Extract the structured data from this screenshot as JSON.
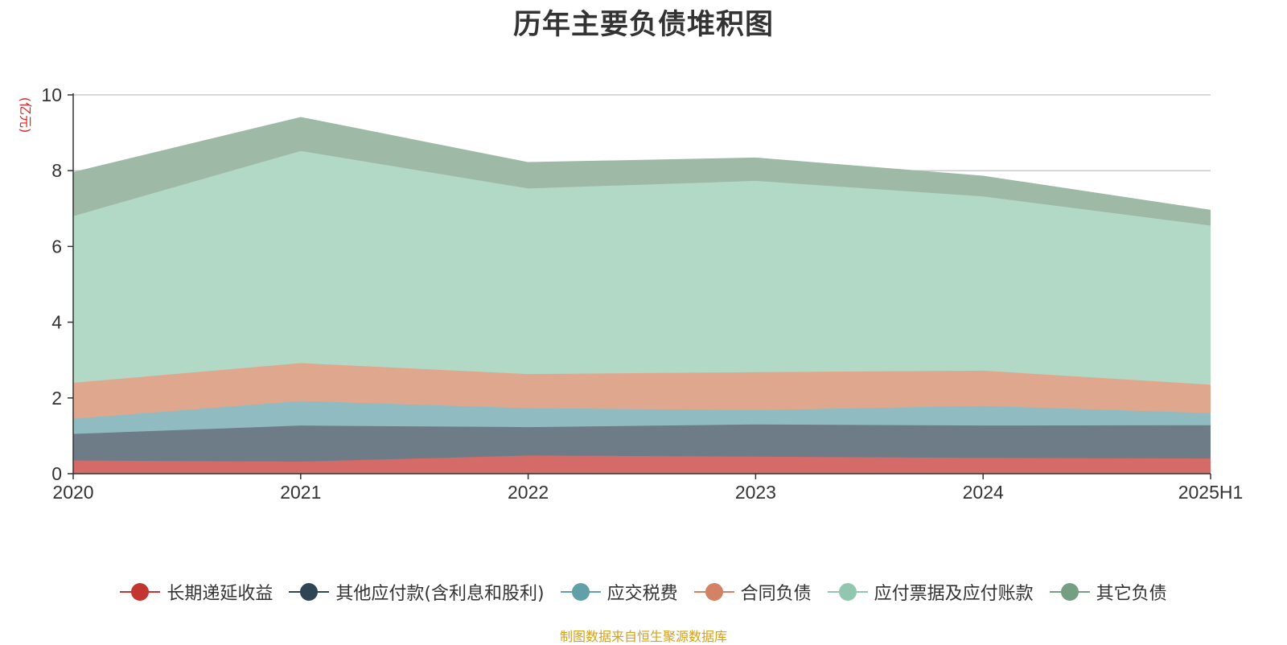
{
  "chart_data": {
    "type": "area",
    "title": "历年主要负债堆积图",
    "unit_label": "(亿元)",
    "x": [
      "2020",
      "2021",
      "2022",
      "2023",
      "2024",
      "2025H1"
    ],
    "ylim": [
      0,
      10
    ],
    "yticks": [
      0,
      2,
      4,
      6,
      8,
      10
    ],
    "stacked": true,
    "grid": true,
    "legend_position": "bottom",
    "series": [
      {
        "name": "长期递延收益",
        "values": [
          0.35,
          0.32,
          0.48,
          0.45,
          0.42,
          0.4
        ],
        "color": "#c23531",
        "fill": "#d46b69"
      },
      {
        "name": "其他应付款(含利息和股利)",
        "values": [
          0.7,
          0.95,
          0.75,
          0.85,
          0.85,
          0.88
        ],
        "color": "#2f4554",
        "fill": "#6e7c87"
      },
      {
        "name": "应交税费",
        "values": [
          0.4,
          0.65,
          0.5,
          0.38,
          0.52,
          0.32
        ],
        "color": "#61a0a8",
        "fill": "#90bcc1"
      },
      {
        "name": "合同负债",
        "values": [
          0.95,
          1.0,
          0.9,
          1.0,
          0.93,
          0.75
        ],
        "color": "#d48265",
        "fill": "#e0a78f"
      },
      {
        "name": "应付票据及应付账款",
        "values": [
          4.4,
          5.6,
          4.9,
          5.05,
          4.6,
          4.2
        ],
        "color": "#91c7ae",
        "fill": "#b2d8c6"
      },
      {
        "name": "其它负债",
        "values": [
          1.15,
          0.88,
          0.68,
          0.6,
          0.53,
          0.4
        ],
        "color": "#749f83",
        "fill": "#9eb9a6"
      }
    ]
  },
  "source_note": "制图数据来自恒生聚源数据库"
}
